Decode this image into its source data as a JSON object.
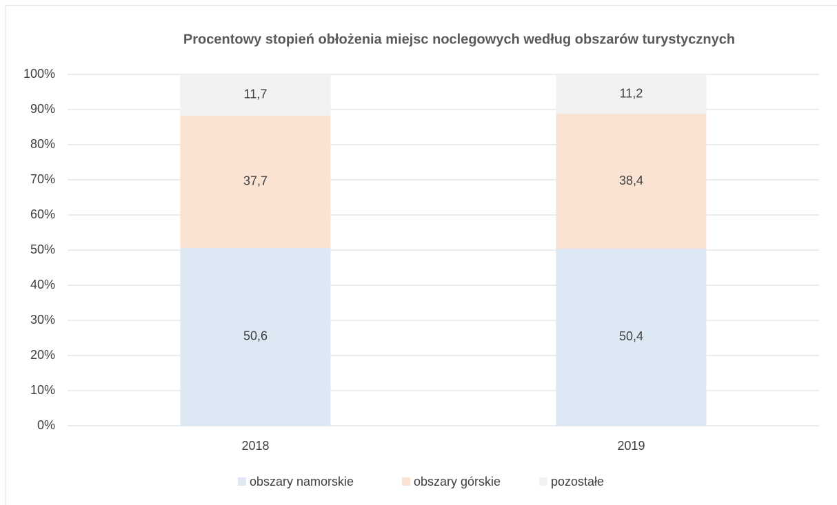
{
  "chart_data": {
    "type": "stacked_bar",
    "title": "Procentowy stopień obłożenia miejsc noclegowych według obszarów turystycznych",
    "categories": [
      "2018",
      "2019"
    ],
    "series": [
      {
        "name": "obszary namorskie",
        "color": "#dde8f5",
        "values": [
          50.6,
          50.4
        ],
        "value_labels": [
          "50,6",
          "50,4"
        ]
      },
      {
        "name": "obszary górskie",
        "color": "#fbe3d4",
        "values": [
          37.7,
          38.4
        ],
        "value_labels": [
          "37,7",
          "38,4"
        ]
      },
      {
        "name": "pozostałe",
        "color": "#f2f2f2",
        "values": [
          11.7,
          11.2
        ],
        "value_labels": [
          "11,7",
          "11,2"
        ]
      }
    ],
    "ylim": [
      0,
      100
    ],
    "yticks": [
      {
        "value": 0,
        "label": "0%"
      },
      {
        "value": 10,
        "label": "10%"
      },
      {
        "value": 20,
        "label": "20%"
      },
      {
        "value": 30,
        "label": "30%"
      },
      {
        "value": 40,
        "label": "40%"
      },
      {
        "value": 50,
        "label": "50%"
      },
      {
        "value": 60,
        "label": "60%"
      },
      {
        "value": 70,
        "label": "70%"
      },
      {
        "value": 80,
        "label": "80%"
      },
      {
        "value": 90,
        "label": "90%"
      },
      {
        "value": 100,
        "label": "100%"
      }
    ],
    "grid": true,
    "legend": "bottom"
  }
}
